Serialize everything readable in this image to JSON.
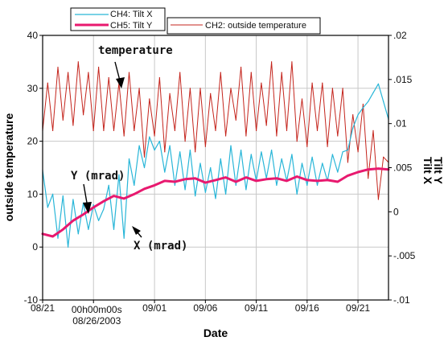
{
  "chart_data": {
    "type": "line",
    "xlabel": "Date",
    "ylabel_left": "outside temperature",
    "ylabel_right": [
      "Tilt X",
      "Tilt Y"
    ],
    "x_ticks": [
      {
        "label": "08/21",
        "day": 0
      },
      {
        "label": "09/01",
        "day": 11
      },
      {
        "label": "09/06",
        "day": 16
      },
      {
        "label": "09/11",
        "day": 21
      },
      {
        "label": "09/16",
        "day": 26
      },
      {
        "label": "09/21",
        "day": 31
      }
    ],
    "x_extra_tick": {
      "day": 5,
      "label_line1": "00h00m00s",
      "label_line2": "08/26/2003"
    },
    "x_range_days": [
      0,
      34
    ],
    "ylim_left": [
      -10,
      40
    ],
    "yticks_left": [
      -10,
      0,
      10,
      20,
      30,
      40
    ],
    "ylim_right": [
      -0.01,
      0.02
    ],
    "yticks_right": [
      -0.01,
      -0.005,
      0,
      0.005,
      0.01,
      0.015,
      0.02
    ],
    "ytick_labels_right": [
      "-.01",
      "-.005",
      "0",
      ".005",
      ".01",
      ".015",
      ".02"
    ],
    "grid": true,
    "legend": [
      {
        "label": "CH4: Tilt X",
        "color": "#29b6d8",
        "width": 1.2
      },
      {
        "label": "CH5: Tilt Y",
        "color": "#e8196f",
        "width": 3
      },
      {
        "label": "CH2: outside temperature",
        "color": "#c4241c",
        "width": 1
      }
    ],
    "annotations": [
      {
        "text": "temperature"
      },
      {
        "text": "Y (mrad)"
      },
      {
        "text": "X (mrad)"
      }
    ],
    "series": [
      {
        "name": "CH2: outside temperature",
        "axis": "left",
        "color": "#c4241c",
        "days": [
          0,
          0.5,
          1,
          1.5,
          2,
          2.5,
          3,
          3.5,
          4,
          4.5,
          5,
          5.5,
          6,
          6.5,
          7,
          7.5,
          8,
          8.5,
          9,
          9.5,
          10,
          10.5,
          11,
          11.5,
          12,
          12.5,
          13,
          13.5,
          14,
          14.5,
          15,
          15.5,
          16,
          16.5,
          17,
          17.5,
          18,
          18.5,
          19,
          19.5,
          20,
          20.5,
          21,
          21.5,
          22,
          22.5,
          23,
          23.5,
          24,
          24.5,
          25,
          25.5,
          26,
          26.5,
          27,
          27.5,
          28,
          28.5,
          29,
          29.5,
          30,
          30.5,
          31,
          31.5,
          32,
          32.5,
          33,
          33.5,
          34
        ],
        "values": [
          22,
          31,
          22,
          34,
          24,
          33,
          23,
          35,
          25,
          33,
          22,
          34,
          22,
          32,
          22,
          31,
          21,
          33,
          22,
          30,
          17,
          28,
          21,
          32,
          18,
          29,
          22,
          33,
          20,
          30,
          18,
          30,
          19,
          29,
          22,
          33,
          21,
          30,
          24,
          34,
          21,
          33,
          22,
          31,
          23,
          35,
          21,
          33,
          22,
          35,
          20,
          28,
          19,
          31,
          22,
          31,
          19,
          30,
          21,
          30,
          16,
          25,
          18,
          27,
          13,
          22,
          9,
          17,
          16
        ]
      },
      {
        "name": "CH4: Tilt X",
        "axis": "right",
        "color": "#29b6d8",
        "days": [
          0,
          0.5,
          1,
          1.5,
          2,
          2.5,
          3,
          3.5,
          4,
          4.5,
          5,
          5.5,
          6,
          6.5,
          7,
          7.5,
          8,
          8.5,
          9,
          9.5,
          10,
          10.5,
          11,
          11.5,
          12,
          12.5,
          13,
          13.5,
          14,
          14.5,
          15,
          15.5,
          16,
          16.5,
          17,
          17.5,
          18,
          18.5,
          19,
          19.5,
          20,
          20.5,
          21,
          21.5,
          22,
          22.5,
          23,
          23.5,
          24,
          24.5,
          25,
          25.5,
          26,
          26.5,
          27,
          27.5,
          28,
          28.5,
          29,
          29.5,
          30,
          30.5,
          31,
          31.5,
          32,
          32.5,
          33,
          33.5,
          34
        ],
        "values": [
          0.0047,
          0.0005,
          0.002,
          -0.003,
          0.0018,
          -0.004,
          0.0014,
          -0.0025,
          0.001,
          -0.002,
          0.0008,
          -0.001,
          0.0003,
          0.003,
          -0.002,
          0.0042,
          -0.003,
          0.006,
          0.003,
          0.0075,
          0.005,
          0.0085,
          0.007,
          0.008,
          0.0045,
          0.0075,
          0.003,
          0.0068,
          0.0025,
          0.007,
          0.0018,
          0.0055,
          0.0022,
          0.005,
          0.0015,
          0.006,
          0.002,
          0.0075,
          0.003,
          0.007,
          0.0025,
          0.0065,
          0.0035,
          0.0068,
          0.0038,
          0.007,
          0.003,
          0.006,
          0.0035,
          0.0065,
          0.002,
          0.0055,
          0.003,
          0.0062,
          0.003,
          0.0055,
          0.0035,
          0.0065,
          0.0045,
          0.0068,
          0.007,
          0.0095,
          0.011,
          0.0118,
          0.0125,
          0.0135,
          0.0145,
          0.0125,
          0.0105
        ]
      },
      {
        "name": "CH5: Tilt Y",
        "axis": "right",
        "color": "#e8196f",
        "days": [
          0,
          1,
          2,
          3,
          4,
          5,
          6,
          7,
          8,
          9,
          10,
          11,
          12,
          13,
          14,
          15,
          16,
          17,
          18,
          19,
          20,
          21,
          22,
          23,
          24,
          25,
          26,
          27,
          28,
          29,
          30,
          31,
          32,
          33,
          34
        ],
        "values": [
          -0.0025,
          -0.0028,
          -0.002,
          -0.001,
          -0.0003,
          0.0005,
          0.0012,
          0.0018,
          0.0015,
          0.002,
          0.0026,
          0.003,
          0.0035,
          0.0034,
          0.0037,
          0.0038,
          0.0033,
          0.0036,
          0.0039,
          0.0034,
          0.0039,
          0.0035,
          0.0037,
          0.0038,
          0.0035,
          0.004,
          0.0036,
          0.0035,
          0.0036,
          0.0034,
          0.0041,
          0.0045,
          0.0048,
          0.0049,
          0.0048
        ]
      }
    ]
  }
}
